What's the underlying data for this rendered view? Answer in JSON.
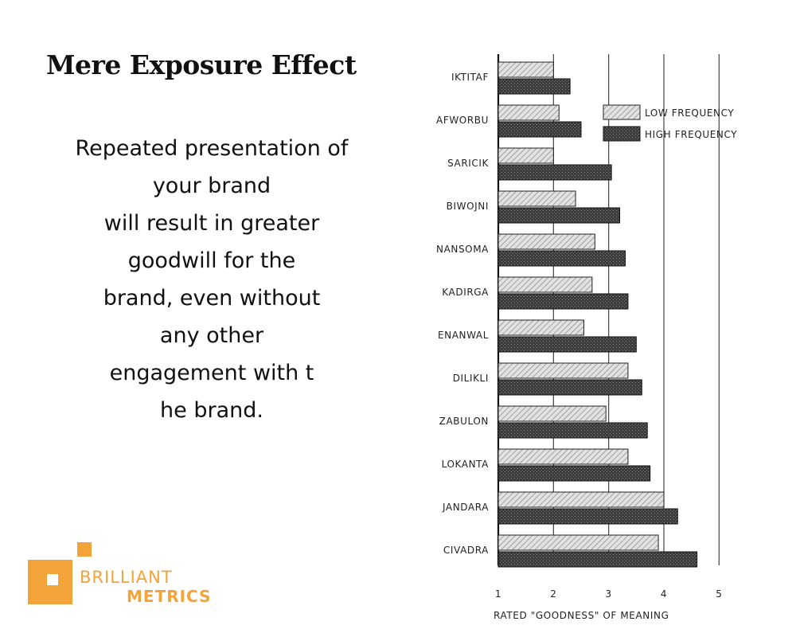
{
  "page": {
    "title": "Mere Exposure Effect",
    "body_lines": [
      "Repeated presentation of",
      "your brand",
      "will result in greater",
      "goodwill for the",
      "brand, even without",
      "any other",
      "engagement with t",
      "he brand."
    ]
  },
  "logo": {
    "word1": "BRILLIANT",
    "word2": "METRICS",
    "color": "#f2a33a"
  },
  "chart_data": {
    "type": "bar",
    "orientation": "horizontal",
    "categories": [
      "IKTITAF",
      "AFWORBU",
      "SARICIK",
      "BIWOJNI",
      "NANSOMA",
      "KADIRGA",
      "ENANWAL",
      "DILIKLI",
      "ZABULON",
      "LOKANTA",
      "JANDARA",
      "CIVADRA"
    ],
    "series": [
      {
        "name": "LOW FREQUENCY",
        "values": [
          2.0,
          2.1,
          2.0,
          2.4,
          2.75,
          2.7,
          2.55,
          3.35,
          2.95,
          3.35,
          4.0,
          3.9
        ]
      },
      {
        "name": "HIGH FREQUENCY",
        "values": [
          2.3,
          2.5,
          3.05,
          3.2,
          3.3,
          3.35,
          3.5,
          3.6,
          3.7,
          3.75,
          4.25,
          4.6
        ]
      }
    ],
    "xlabel": "RATED \"GOODNESS\" OF MEANING",
    "xlim": [
      1,
      5.5
    ],
    "xticks": [
      1,
      2,
      3,
      4,
      5
    ],
    "grid": true,
    "legend": "top-right",
    "colors": {
      "low": "#dcdcdc",
      "high": "#3a3a3a"
    }
  }
}
